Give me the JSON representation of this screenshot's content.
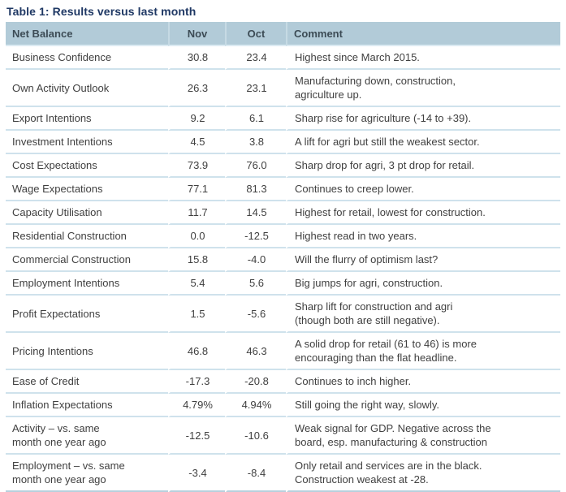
{
  "title": "Table 1: Results versus last month",
  "colors": {
    "header_background": "#b2cbd8",
    "header_text": "#3c4b55",
    "title_text": "#1f3864",
    "body_text": "#404040",
    "row_separator": "#cfe2ec",
    "bottom_border": "#b7d0dd"
  },
  "table": {
    "headers": [
      "Net Balance",
      "Nov",
      "Oct",
      "Comment"
    ],
    "rows": [
      {
        "label": "Business Confidence",
        "nov": "30.8",
        "oct": "23.4",
        "comment": "Highest since March 2015."
      },
      {
        "label": "Own Activity Outlook",
        "nov": "26.3",
        "oct": "23.1",
        "comment": "Manufacturing down, construction,\nagriculture up."
      },
      {
        "label": "Export Intentions",
        "nov": "9.2",
        "oct": "6.1",
        "comment": "Sharp rise for agriculture (-14 to +39)."
      },
      {
        "label": "Investment Intentions",
        "nov": "4.5",
        "oct": "3.8",
        "comment": "A lift for agri but still the weakest sector."
      },
      {
        "label": "Cost Expectations",
        "nov": "73.9",
        "oct": "76.0",
        "comment": "Sharp drop for agri, 3 pt drop for retail."
      },
      {
        "label": "Wage Expectations",
        "nov": "77.1",
        "oct": "81.3",
        "comment": "Continues to creep lower."
      },
      {
        "label": "Capacity Utilisation",
        "nov": "11.7",
        "oct": "14.5",
        "comment": "Highest for retail, lowest for construction."
      },
      {
        "label": "Residential Construction",
        "nov": "0.0",
        "oct": "-12.5",
        "comment": "Highest read in two years."
      },
      {
        "label": "Commercial Construction",
        "nov": "15.8",
        "oct": "-4.0",
        "comment": "Will the flurry of optimism last?"
      },
      {
        "label": "Employment Intentions",
        "nov": "5.4",
        "oct": "5.6",
        "comment": "Big jumps for agri, construction."
      },
      {
        "label": "Profit Expectations",
        "nov": "1.5",
        "oct": "-5.6",
        "comment": "Sharp lift for construction and agri\n(though both are still negative)."
      },
      {
        "label": "Pricing Intentions",
        "nov": "46.8",
        "oct": "46.3",
        "comment": "A solid drop for retail (61 to 46) is more\nencouraging than the flat headline."
      },
      {
        "label": "Ease of Credit",
        "nov": "-17.3",
        "oct": "-20.8",
        "comment": "Continues to inch higher."
      },
      {
        "label": "Inflation Expectations",
        "nov": "4.79%",
        "oct": "4.94%",
        "comment": "Still going the right way, slowly."
      },
      {
        "label": "Activity – vs. same\nmonth one year ago",
        "nov": "-12.5",
        "oct": "-10.6",
        "comment": "Weak signal for GDP. Negative across the\nboard, esp. manufacturing & construction"
      },
      {
        "label": "Employment – vs. same\nmonth one year ago",
        "nov": "-3.4",
        "oct": "-8.4",
        "comment": "Only retail and services are in the black.\nConstruction weakest at -28."
      }
    ]
  }
}
